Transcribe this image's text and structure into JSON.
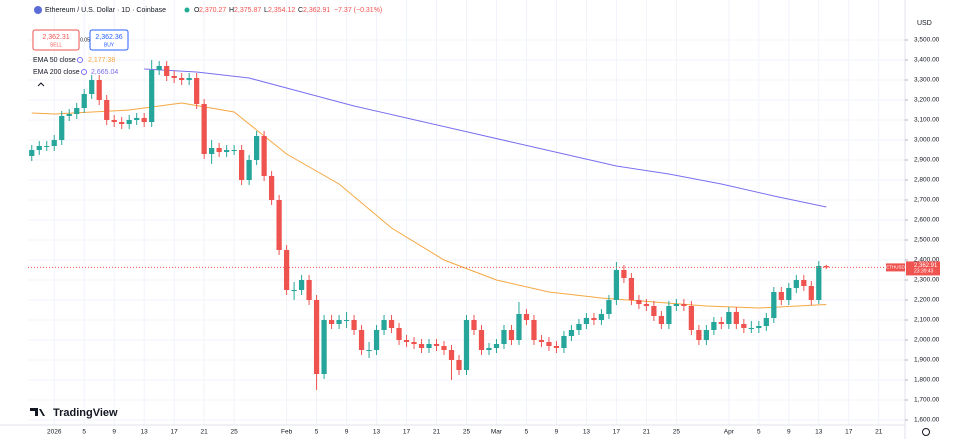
{
  "chart_data": {
    "type": "candlestick",
    "title": "Ethereum / U.S. Dollar · 1D · Coinbase",
    "ohlc_names": [
      "O",
      "H",
      "L",
      "C"
    ],
    "ohlc_labels": [
      "2,370.27",
      "2,375.87",
      "2,354.12",
      "2,362.91"
    ],
    "change": "−7.37 (−0.31%)",
    "sell": {
      "price": "2,362.31",
      "label": "SELL"
    },
    "spread": "0.05",
    "buy": {
      "price": "2,362.36",
      "label": "BUY"
    },
    "currency": "USD",
    "symbol": "ETHUSD",
    "last_price_label": "2,362.91",
    "countdown": "23:39:43",
    "brand": "TradingView",
    "up_color": "#26a69a",
    "down_color": "#ef5350",
    "x": [
      -3,
      -2,
      -1,
      0,
      1,
      2,
      3,
      4,
      5,
      6,
      7,
      8,
      9,
      10,
      11,
      12,
      13,
      14,
      15,
      16,
      17,
      18,
      19,
      20,
      21,
      22,
      23,
      24,
      25,
      26,
      27,
      28,
      29,
      30,
      31,
      32,
      33,
      34,
      35,
      36,
      37,
      38,
      39,
      40,
      41,
      42,
      43,
      44,
      45,
      46,
      47,
      48,
      49,
      50,
      51,
      52,
      53,
      54,
      55,
      56,
      57,
      58,
      59,
      60,
      61,
      62,
      63,
      64,
      65,
      66,
      67,
      68,
      69,
      70,
      71,
      72,
      73,
      74,
      75,
      76,
      77,
      78,
      79,
      80,
      81,
      82,
      83,
      84,
      85,
      86,
      87,
      88,
      89,
      90,
      91,
      92,
      93,
      94,
      95,
      96,
      97,
      98,
      99,
      100,
      101,
      102,
      103
    ],
    "open": [
      2920,
      2950,
      2970,
      2970,
      3000,
      3120,
      3130,
      3160,
      3230,
      3300,
      3200,
      3100,
      3090,
      3080,
      3100,
      3110,
      3090,
      3350,
      3370,
      3320,
      3310,
      3300,
      3310,
      3180,
      2930,
      2960,
      2940,
      2950,
      2950,
      2800,
      2900,
      3020,
      2820,
      2700,
      2450,
      2250,
      2250,
      2300,
      2200,
      1830,
      2100,
      2080,
      2100,
      2100,
      2050,
      1950,
      1950,
      2050,
      2100,
      2060,
      2000,
      1990,
      1980,
      1960,
      1980,
      1970,
      1950,
      1900,
      1850,
      2100,
      2050,
      1950,
      1960,
      1980,
      2050,
      2000,
      2130,
      2100,
      2000,
      1990,
      1970,
      1960,
      2020,
      2050,
      2080,
      2110,
      2100,
      2130,
      2200,
      2350,
      2310,
      2200,
      2180,
      2170,
      2120,
      2080,
      2170,
      2180,
      2170,
      2050,
      2000,
      2050,
      2090,
      2080,
      2140,
      2080,
      2060,
      2060,
      2070,
      2110,
      2240,
      2200,
      2260,
      2300,
      2270,
      2200,
      2370.27
    ],
    "high": [
      2975,
      2995,
      2995,
      3025,
      3145,
      3155,
      3185,
      3255,
      3325,
      3325,
      3225,
      3125,
      3115,
      3125,
      3135,
      3135,
      3400,
      3395,
      3395,
      3345,
      3335,
      3335,
      3335,
      3205,
      3000,
      2985,
      2975,
      2975,
      2975,
      2925,
      3045,
      3045,
      2845,
      2725,
      2475,
      2290,
      2325,
      2325,
      2225,
      2125,
      2125,
      2125,
      2140,
      2125,
      2075,
      1990,
      2075,
      2125,
      2125,
      2085,
      2025,
      2015,
      2005,
      2005,
      2005,
      1995,
      1975,
      1925,
      2125,
      2125,
      2075,
      1985,
      2005,
      2075,
      2075,
      2190,
      2155,
      2125,
      2025,
      2015,
      1995,
      2045,
      2075,
      2105,
      2135,
      2135,
      2155,
      2225,
      2390,
      2375,
      2335,
      2225,
      2205,
      2195,
      2145,
      2195,
      2205,
      2205,
      2195,
      2075,
      2075,
      2115,
      2115,
      2165,
      2165,
      2105,
      2095,
      2095,
      2135,
      2265,
      2265,
      2285,
      2325,
      2325,
      2295,
      2395,
      2375.87
    ],
    "low": [
      2895,
      2925,
      2945,
      2945,
      2975,
      3095,
      3105,
      3135,
      3205,
      3175,
      3075,
      3065,
      3055,
      3055,
      3075,
      3065,
      3065,
      3325,
      3295,
      3285,
      3275,
      3275,
      3155,
      2905,
      2880,
      2915,
      2915,
      2925,
      2775,
      2775,
      2875,
      2795,
      2675,
      2425,
      2225,
      2200,
      2225,
      2175,
      1750,
      1805,
      2055,
      2055,
      2060,
      2025,
      1925,
      1910,
      1925,
      2025,
      2035,
      1975,
      1965,
      1955,
      1935,
      1935,
      1945,
      1925,
      1800,
      1825,
      1825,
      2025,
      1925,
      1925,
      1935,
      1955,
      1975,
      1975,
      2075,
      1975,
      1965,
      1945,
      1935,
      1935,
      1995,
      2025,
      2055,
      2075,
      2075,
      2105,
      2175,
      2285,
      2175,
      2155,
      2145,
      2095,
      2055,
      2055,
      2145,
      2145,
      2025,
      1975,
      1975,
      2025,
      2055,
      2055,
      2055,
      2035,
      2035,
      2035,
      2045,
      2085,
      2175,
      2175,
      2235,
      2245,
      2175,
      2180,
      2354.12
    ],
    "close": [
      2950,
      2970,
      2970,
      3000,
      3120,
      3130,
      3160,
      3230,
      3300,
      3200,
      3100,
      3090,
      3080,
      3100,
      3110,
      3090,
      3350,
      3370,
      3320,
      3310,
      3300,
      3310,
      3180,
      2930,
      2960,
      2940,
      2950,
      2950,
      2800,
      2900,
      3020,
      2820,
      2700,
      2450,
      2250,
      2250,
      2300,
      2200,
      1830,
      2100,
      2080,
      2100,
      2100,
      2050,
      1950,
      1950,
      2050,
      2100,
      2060,
      2000,
      1990,
      1980,
      1960,
      1980,
      1970,
      1950,
      1900,
      1850,
      2100,
      2050,
      1950,
      1960,
      1980,
      2050,
      2000,
      2130,
      2100,
      2000,
      1990,
      1970,
      1960,
      2020,
      2050,
      2080,
      2110,
      2100,
      2130,
      2200,
      2350,
      2310,
      2200,
      2180,
      2170,
      2120,
      2080,
      2170,
      2180,
      2170,
      2050,
      2000,
      2050,
      2090,
      2080,
      2140,
      2080,
      2060,
      2060,
      2070,
      2110,
      2240,
      2200,
      2260,
      2300,
      2270,
      2200,
      2370.27,
      2362.91
    ],
    "series": [
      {
        "name": "EMA 50 close",
        "value_label": "2,177.38",
        "color": "#f5a742",
        "x": [
          -3,
          0,
          10,
          17,
          24,
          31,
          38,
          45,
          52,
          59,
          66,
          73,
          80,
          87,
          94,
          103
        ],
        "values": [
          3135,
          3130,
          3150,
          3185,
          3140,
          2930,
          2780,
          2560,
          2400,
          2300,
          2240,
          2210,
          2190,
          2170,
          2160,
          2177.38
        ]
      },
      {
        "name": "EMA 200 close",
        "value_label": "2,665.04",
        "color": "#7b6ff0",
        "x": [
          12,
          19,
          26,
          33,
          40,
          47,
          54,
          61,
          68,
          75,
          82,
          89,
          96,
          103
        ],
        "values": [
          3355,
          3340,
          3310,
          3240,
          3170,
          3110,
          3050,
          2990,
          2930,
          2870,
          2830,
          2780,
          2720,
          2665.04
        ]
      }
    ],
    "xlim": [
      -3.5,
      113.5
    ],
    "xticks": [
      {
        "value": 0,
        "label": "2026"
      },
      {
        "value": 4,
        "label": "5"
      },
      {
        "value": 8,
        "label": "9"
      },
      {
        "value": 12,
        "label": "13"
      },
      {
        "value": 16,
        "label": "17"
      },
      {
        "value": 20,
        "label": "21"
      },
      {
        "value": 24,
        "label": "25"
      },
      {
        "value": 31,
        "label": "Feb"
      },
      {
        "value": 35,
        "label": "5"
      },
      {
        "value": 39,
        "label": "9"
      },
      {
        "value": 43,
        "label": "13"
      },
      {
        "value": 47,
        "label": "17"
      },
      {
        "value": 51,
        "label": "21"
      },
      {
        "value": 55,
        "label": "25"
      },
      {
        "value": 59,
        "label": "Mar"
      },
      {
        "value": 63,
        "label": "5"
      },
      {
        "value": 67,
        "label": "9"
      },
      {
        "value": 71,
        "label": "13"
      },
      {
        "value": 75,
        "label": "17"
      },
      {
        "value": 79,
        "label": "21"
      },
      {
        "value": 83,
        "label": "25"
      },
      {
        "value": 90,
        "label": "Apr"
      },
      {
        "value": 94,
        "label": "5"
      },
      {
        "value": 98,
        "label": "9"
      },
      {
        "value": 102,
        "label": "13"
      },
      {
        "value": 106,
        "label": "17"
      },
      {
        "value": 110,
        "label": "21"
      }
    ],
    "ylim": [
      1575,
      3700
    ],
    "yticks": [
      {
        "value": 1600,
        "label": "1,600.00"
      },
      {
        "value": 1700,
        "label": "1,700.00"
      },
      {
        "value": 1800,
        "label": "1,800.00"
      },
      {
        "value": 1900,
        "label": "1,900.00"
      },
      {
        "value": 2000,
        "label": "2,000.00"
      },
      {
        "value": 2100,
        "label": "2,100.00"
      },
      {
        "value": 2200,
        "label": "2,200.00"
      },
      {
        "value": 2300,
        "label": "2,300.00"
      },
      {
        "value": 2400,
        "label": "2,400.00"
      },
      {
        "value": 2500,
        "label": "2,500.00"
      },
      {
        "value": 2600,
        "label": "2,600.00"
      },
      {
        "value": 2700,
        "label": "2,700.00"
      },
      {
        "value": 2800,
        "label": "2,800.00"
      },
      {
        "value": 2900,
        "label": "2,900.00"
      },
      {
        "value": 3000,
        "label": "3,000.00"
      },
      {
        "value": 3100,
        "label": "3,100.00"
      },
      {
        "value": 3200,
        "label": "3,200.00"
      },
      {
        "value": 3300,
        "label": "3,300.00"
      },
      {
        "value": 3400,
        "label": "3,400.00"
      },
      {
        "value": 3500,
        "label": "3,500.00"
      }
    ],
    "grid": true
  }
}
